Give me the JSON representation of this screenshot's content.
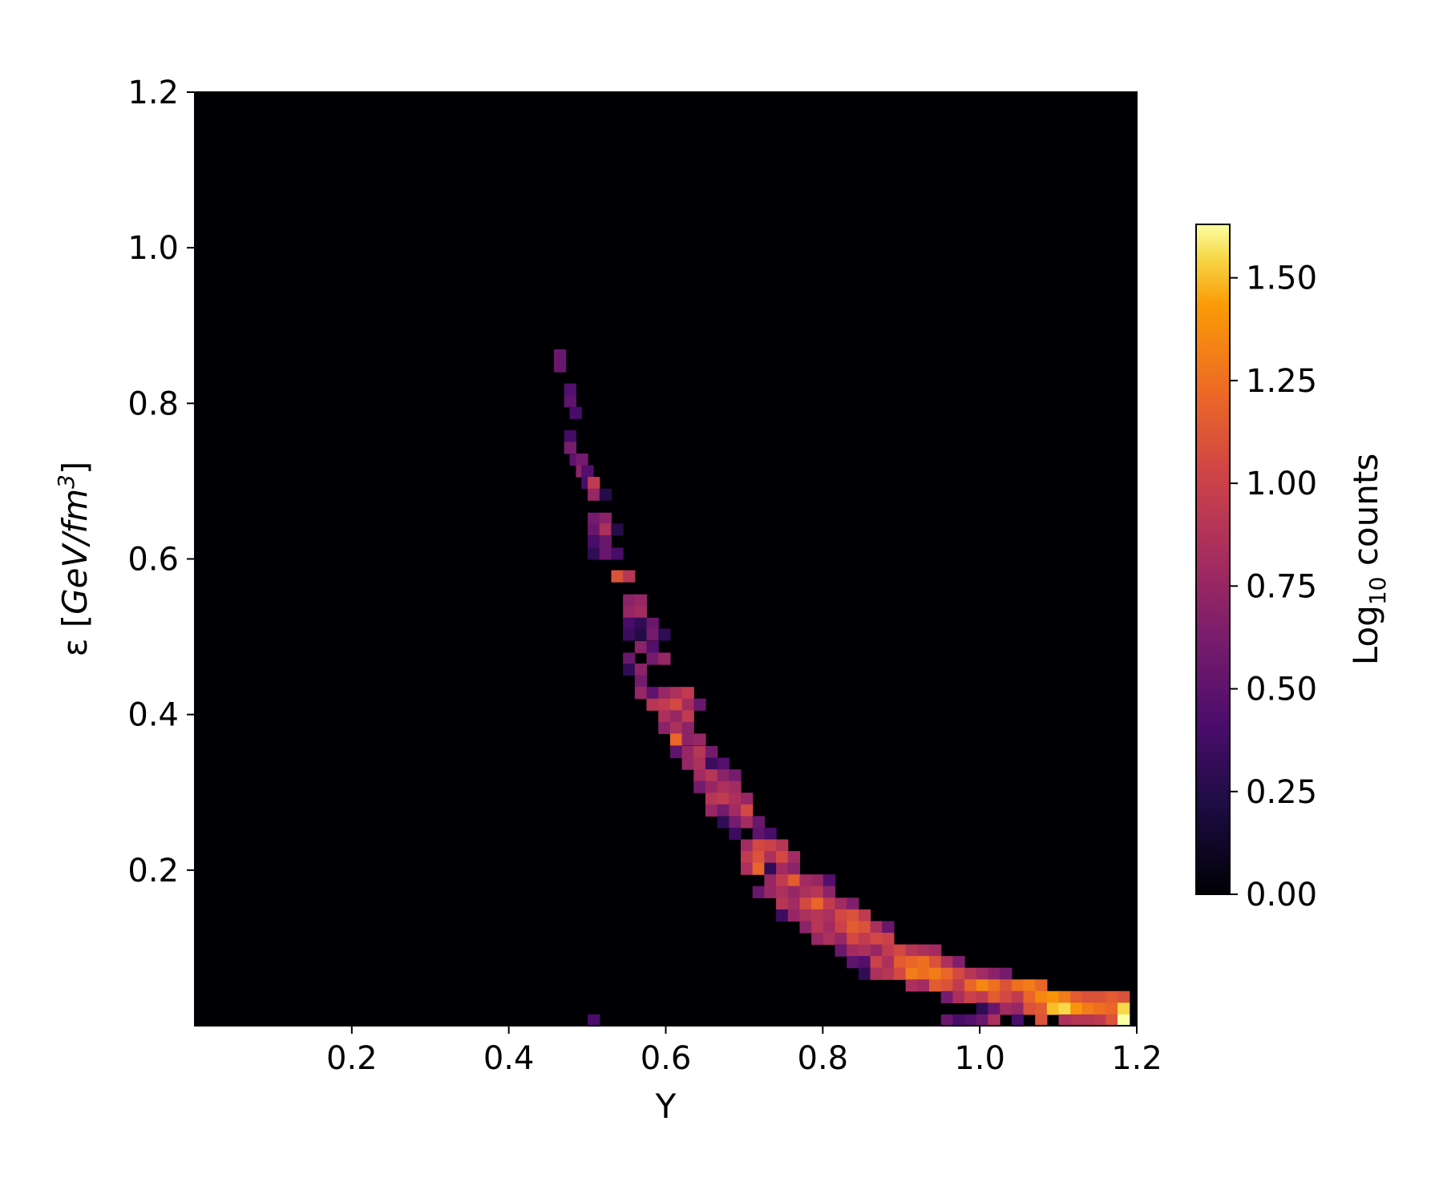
{
  "chart_data": {
    "type": "heatmap",
    "xlabel": "Y",
    "ylabel": {
      "prefix": "ε [",
      "unit_italic": "GeV/fm",
      "superscript": "3",
      "suffix": "]"
    },
    "xlim": [
      0.0,
      1.2
    ],
    "ylim": [
      0.0,
      1.2
    ],
    "x_ticks": [
      "0.2",
      "0.4",
      "0.6",
      "0.8",
      "1.0",
      "1.2"
    ],
    "y_ticks": [
      "0.2",
      "0.4",
      "0.6",
      "0.8",
      "1.0",
      "1.2"
    ],
    "colormap": "inferno",
    "background_color": "#000004",
    "colorbar": {
      "label_main": "Log",
      "label_sub": "10",
      "label_rest": " counts",
      "range": [
        0.0,
        1.63
      ],
      "ticks": [
        "0.00",
        "0.25",
        "0.50",
        "0.75",
        "1.00",
        "1.25",
        "1.50"
      ]
    },
    "bin_width": 0.015,
    "bin_height": 0.015,
    "bins": [
      [
        0.465,
        0.862,
        0.55
      ],
      [
        0.465,
        0.848,
        0.55
      ],
      [
        0.478,
        0.818,
        0.45
      ],
      [
        0.478,
        0.803,
        0.5
      ],
      [
        0.485,
        0.788,
        0.4
      ],
      [
        0.478,
        0.758,
        0.38
      ],
      [
        0.478,
        0.743,
        0.62
      ],
      [
        0.485,
        0.728,
        0.5
      ],
      [
        0.493,
        0.728,
        0.6
      ],
      [
        0.493,
        0.713,
        0.7
      ],
      [
        0.5,
        0.713,
        0.45
      ],
      [
        0.5,
        0.698,
        0.4
      ],
      [
        0.508,
        0.698,
        0.95
      ],
      [
        0.508,
        0.683,
        0.75
      ],
      [
        0.523,
        0.683,
        0.25
      ],
      [
        0.508,
        0.652,
        0.6
      ],
      [
        0.523,
        0.652,
        0.7
      ],
      [
        0.508,
        0.638,
        0.55
      ],
      [
        0.523,
        0.638,
        0.85
      ],
      [
        0.538,
        0.638,
        0.25
      ],
      [
        0.508,
        0.622,
        0.4
      ],
      [
        0.523,
        0.622,
        0.55
      ],
      [
        0.508,
        0.607,
        0.3
      ],
      [
        0.523,
        0.607,
        0.55
      ],
      [
        0.538,
        0.607,
        0.4
      ],
      [
        0.538,
        0.578,
        1.1
      ],
      [
        0.553,
        0.578,
        0.9
      ],
      [
        0.553,
        0.547,
        0.7
      ],
      [
        0.568,
        0.547,
        0.75
      ],
      [
        0.553,
        0.532,
        0.75
      ],
      [
        0.568,
        0.532,
        0.8
      ],
      [
        0.553,
        0.517,
        0.4
      ],
      [
        0.568,
        0.517,
        0.3
      ],
      [
        0.583,
        0.517,
        0.55
      ],
      [
        0.553,
        0.503,
        0.35
      ],
      [
        0.568,
        0.503,
        0.25
      ],
      [
        0.583,
        0.503,
        0.6
      ],
      [
        0.598,
        0.503,
        0.3
      ],
      [
        0.568,
        0.487,
        0.7
      ],
      [
        0.583,
        0.487,
        0.45
      ],
      [
        0.553,
        0.472,
        0.55
      ],
      [
        0.583,
        0.472,
        0.6
      ],
      [
        0.598,
        0.472,
        0.75
      ],
      [
        0.553,
        0.458,
        0.3
      ],
      [
        0.568,
        0.458,
        0.7
      ],
      [
        0.568,
        0.443,
        0.6
      ],
      [
        0.568,
        0.428,
        0.75
      ],
      [
        0.583,
        0.428,
        0.5
      ],
      [
        0.598,
        0.428,
        0.75
      ],
      [
        0.613,
        0.428,
        0.85
      ],
      [
        0.628,
        0.428,
        0.95
      ],
      [
        0.583,
        0.413,
        0.9
      ],
      [
        0.598,
        0.413,
        0.95
      ],
      [
        0.613,
        0.413,
        1.05
      ],
      [
        0.628,
        0.413,
        0.8
      ],
      [
        0.643,
        0.413,
        0.55
      ],
      [
        0.598,
        0.398,
        0.85
      ],
      [
        0.613,
        0.398,
        0.75
      ],
      [
        0.628,
        0.398,
        0.95
      ],
      [
        0.598,
        0.383,
        0.7
      ],
      [
        0.613,
        0.383,
        0.85
      ],
      [
        0.628,
        0.383,
        0.7
      ],
      [
        0.613,
        0.368,
        1.2
      ],
      [
        0.628,
        0.368,
        0.7
      ],
      [
        0.643,
        0.368,
        0.75
      ],
      [
        0.613,
        0.352,
        0.5
      ],
      [
        0.628,
        0.352,
        0.75
      ],
      [
        0.643,
        0.352,
        0.9
      ],
      [
        0.658,
        0.352,
        0.6
      ],
      [
        0.628,
        0.337,
        0.75
      ],
      [
        0.643,
        0.337,
        0.85
      ],
      [
        0.658,
        0.337,
        0.35
      ],
      [
        0.673,
        0.337,
        0.45
      ],
      [
        0.643,
        0.322,
        0.8
      ],
      [
        0.658,
        0.322,
        0.9
      ],
      [
        0.673,
        0.322,
        0.7
      ],
      [
        0.688,
        0.322,
        0.6
      ],
      [
        0.643,
        0.307,
        0.6
      ],
      [
        0.658,
        0.307,
        0.75
      ],
      [
        0.673,
        0.307,
        0.85
      ],
      [
        0.688,
        0.307,
        0.8
      ],
      [
        0.658,
        0.292,
        0.9
      ],
      [
        0.673,
        0.292,
        0.95
      ],
      [
        0.688,
        0.292,
        0.85
      ],
      [
        0.703,
        0.292,
        0.75
      ],
      [
        0.658,
        0.277,
        0.75
      ],
      [
        0.673,
        0.277,
        0.6
      ],
      [
        0.688,
        0.277,
        0.8
      ],
      [
        0.703,
        0.277,
        1.05
      ],
      [
        0.673,
        0.262,
        0.3
      ],
      [
        0.688,
        0.262,
        0.6
      ],
      [
        0.703,
        0.262,
        0.8
      ],
      [
        0.718,
        0.262,
        0.55
      ],
      [
        0.688,
        0.247,
        0.35
      ],
      [
        0.718,
        0.247,
        0.5
      ],
      [
        0.733,
        0.247,
        0.4
      ],
      [
        0.703,
        0.232,
        0.8
      ],
      [
        0.718,
        0.232,
        1.05
      ],
      [
        0.733,
        0.232,
        1.0
      ],
      [
        0.748,
        0.232,
        0.9
      ],
      [
        0.703,
        0.217,
        0.95
      ],
      [
        0.718,
        0.217,
        1.1
      ],
      [
        0.733,
        0.217,
        0.85
      ],
      [
        0.748,
        0.217,
        1.05
      ],
      [
        0.763,
        0.217,
        0.8
      ],
      [
        0.703,
        0.202,
        0.85
      ],
      [
        0.718,
        0.202,
        1.2
      ],
      [
        0.733,
        0.202,
        0.3
      ],
      [
        0.748,
        0.202,
        0.8
      ],
      [
        0.763,
        0.202,
        0.7
      ],
      [
        0.733,
        0.187,
        0.75
      ],
      [
        0.748,
        0.187,
        0.95
      ],
      [
        0.763,
        0.187,
        1.15
      ],
      [
        0.778,
        0.187,
        0.8
      ],
      [
        0.793,
        0.187,
        0.75
      ],
      [
        0.808,
        0.187,
        0.45
      ],
      [
        0.718,
        0.172,
        0.55
      ],
      [
        0.733,
        0.172,
        0.75
      ],
      [
        0.748,
        0.172,
        0.85
      ],
      [
        0.763,
        0.172,
        0.75
      ],
      [
        0.778,
        0.172,
        0.85
      ],
      [
        0.793,
        0.172,
        0.9
      ],
      [
        0.808,
        0.172,
        0.7
      ],
      [
        0.748,
        0.157,
        0.9
      ],
      [
        0.763,
        0.157,
        0.8
      ],
      [
        0.778,
        0.157,
        1.05
      ],
      [
        0.793,
        0.157,
        1.2
      ],
      [
        0.808,
        0.157,
        0.95
      ],
      [
        0.823,
        0.157,
        0.8
      ],
      [
        0.838,
        0.157,
        0.65
      ],
      [
        0.748,
        0.142,
        0.35
      ],
      [
        0.763,
        0.142,
        0.75
      ],
      [
        0.778,
        0.142,
        0.85
      ],
      [
        0.793,
        0.142,
        0.9
      ],
      [
        0.808,
        0.142,
        0.85
      ],
      [
        0.823,
        0.142,
        1.05
      ],
      [
        0.838,
        0.142,
        1.1
      ],
      [
        0.853,
        0.142,
        0.95
      ],
      [
        0.778,
        0.127,
        0.7
      ],
      [
        0.793,
        0.127,
        0.9
      ],
      [
        0.808,
        0.127,
        0.8
      ],
      [
        0.823,
        0.127,
        1.0
      ],
      [
        0.838,
        0.127,
        1.15
      ],
      [
        0.853,
        0.127,
        1.1
      ],
      [
        0.868,
        0.127,
        0.85
      ],
      [
        0.883,
        0.127,
        0.55
      ],
      [
        0.793,
        0.112,
        0.75
      ],
      [
        0.808,
        0.112,
        0.85
      ],
      [
        0.823,
        0.112,
        0.75
      ],
      [
        0.838,
        0.112,
        1.05
      ],
      [
        0.853,
        0.112,
        0.95
      ],
      [
        0.868,
        0.112,
        1.05
      ],
      [
        0.883,
        0.112,
        1.0
      ],
      [
        0.823,
        0.097,
        0.55
      ],
      [
        0.838,
        0.097,
        0.8
      ],
      [
        0.853,
        0.097,
        0.85
      ],
      [
        0.868,
        0.097,
        0.75
      ],
      [
        0.883,
        0.097,
        0.95
      ],
      [
        0.898,
        0.097,
        1.05
      ],
      [
        0.913,
        0.097,
        0.9
      ],
      [
        0.928,
        0.097,
        0.85
      ],
      [
        0.943,
        0.097,
        0.8
      ],
      [
        0.838,
        0.082,
        0.5
      ],
      [
        0.853,
        0.082,
        0.45
      ],
      [
        0.868,
        0.082,
        1.0
      ],
      [
        0.883,
        0.082,
        0.85
      ],
      [
        0.898,
        0.082,
        1.15
      ],
      [
        0.913,
        0.082,
        1.2
      ],
      [
        0.928,
        0.082,
        1.25
      ],
      [
        0.943,
        0.082,
        1.1
      ],
      [
        0.958,
        0.082,
        0.85
      ],
      [
        0.973,
        0.082,
        0.65
      ],
      [
        0.853,
        0.067,
        0.3
      ],
      [
        0.868,
        0.067,
        0.85
      ],
      [
        0.883,
        0.067,
        0.9
      ],
      [
        0.898,
        0.067,
        1.05
      ],
      [
        0.913,
        0.067,
        1.3
      ],
      [
        0.928,
        0.067,
        1.25
      ],
      [
        0.943,
        0.067,
        1.3
      ],
      [
        0.958,
        0.067,
        1.2
      ],
      [
        0.973,
        0.067,
        1.05
      ],
      [
        0.988,
        0.067,
        0.9
      ],
      [
        1.003,
        0.067,
        0.8
      ],
      [
        1.018,
        0.067,
        0.7
      ],
      [
        1.033,
        0.067,
        0.6
      ],
      [
        0.913,
        0.052,
        0.85
      ],
      [
        0.928,
        0.052,
        0.8
      ],
      [
        0.943,
        0.052,
        1.15
      ],
      [
        0.958,
        0.052,
        1.1
      ],
      [
        0.973,
        0.052,
        0.95
      ],
      [
        0.988,
        0.052,
        1.2
      ],
      [
        1.003,
        0.052,
        1.35
      ],
      [
        1.018,
        0.052,
        1.25
      ],
      [
        1.033,
        0.052,
        1.1
      ],
      [
        1.048,
        0.052,
        1.25
      ],
      [
        1.063,
        0.052,
        1.3
      ],
      [
        1.078,
        0.052,
        1.2
      ],
      [
        0.958,
        0.037,
        0.6
      ],
      [
        0.973,
        0.037,
        0.85
      ],
      [
        0.988,
        0.037,
        1.0
      ],
      [
        1.003,
        0.037,
        0.95
      ],
      [
        1.018,
        0.037,
        1.15
      ],
      [
        1.033,
        0.037,
        1.05
      ],
      [
        1.048,
        0.037,
        0.95
      ],
      [
        1.063,
        0.037,
        1.2
      ],
      [
        1.078,
        0.037,
        1.35
      ],
      [
        1.093,
        0.037,
        1.4
      ],
      [
        1.108,
        0.037,
        1.3
      ],
      [
        1.123,
        0.037,
        1.15
      ],
      [
        1.138,
        0.037,
        1.1
      ],
      [
        1.153,
        0.037,
        1.1
      ],
      [
        1.168,
        0.037,
        1.15
      ],
      [
        1.183,
        0.037,
        1.1
      ],
      [
        1.003,
        0.022,
        0.3
      ],
      [
        1.018,
        0.022,
        0.55
      ],
      [
        1.033,
        0.022,
        0.8
      ],
      [
        1.048,
        0.022,
        0.75
      ],
      [
        1.063,
        0.022,
        1.1
      ],
      [
        1.078,
        0.022,
        1.15
      ],
      [
        1.093,
        0.022,
        1.5
      ],
      [
        1.108,
        0.022,
        1.55
      ],
      [
        1.123,
        0.022,
        1.4
      ],
      [
        1.138,
        0.022,
        1.3
      ],
      [
        1.153,
        0.022,
        1.25
      ],
      [
        1.168,
        0.022,
        1.2
      ],
      [
        1.183,
        0.022,
        1.55
      ],
      [
        0.508,
        0.007,
        0.4
      ],
      [
        0.958,
        0.007,
        0.55
      ],
      [
        0.973,
        0.007,
        0.4
      ],
      [
        0.988,
        0.007,
        0.45
      ],
      [
        1.003,
        0.007,
        0.55
      ],
      [
        1.018,
        0.007,
        0.85
      ],
      [
        1.048,
        0.007,
        0.4
      ],
      [
        1.078,
        0.007,
        1.1
      ],
      [
        1.108,
        0.007,
        0.85
      ],
      [
        1.123,
        0.007,
        0.9
      ],
      [
        1.138,
        0.007,
        0.9
      ],
      [
        1.153,
        0.007,
        0.95
      ],
      [
        1.168,
        0.007,
        1.1
      ],
      [
        1.183,
        0.007,
        1.63
      ]
    ]
  }
}
